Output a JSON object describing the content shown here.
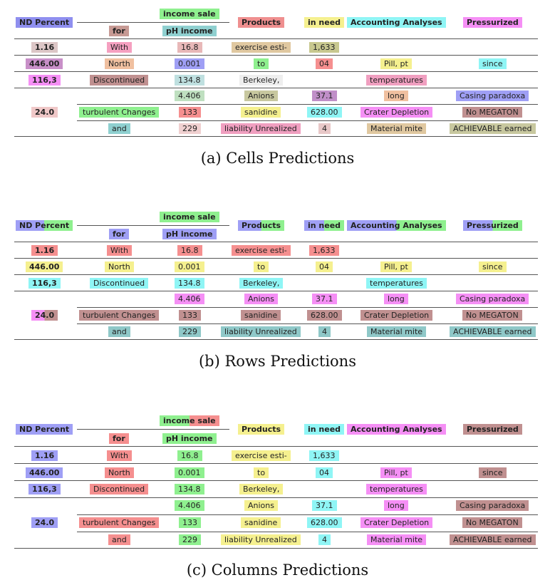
{
  "figures": [
    {
      "id": "cells",
      "caption": "(a)  Cells Predictions",
      "cells": {
        "h_nd_percent": {
          "text": "ND Percent",
          "colors": [
            "#8f8fef"
          ]
        },
        "h_income_sale": {
          "text": "income sale",
          "colors": [
            "#8ff08f"
          ]
        },
        "h_for": {
          "text": "for",
          "colors": [
            "#c79a94"
          ]
        },
        "h_ph_income": {
          "text": "pH income",
          "colors": [
            "#8fd0d0"
          ]
        },
        "h_products": {
          "text": "Products",
          "colors": [
            "#ef8f8f"
          ]
        },
        "h_in_need": {
          "text": "in need",
          "colors": [
            "#f5f08f"
          ]
        },
        "h_accounting": {
          "text": "Accounting Analyses",
          "colors": [
            "#8ff5f5"
          ]
        },
        "h_pressurized": {
          "text": "Pressurized",
          "colors": [
            "#f58ff5"
          ]
        },
        "r1_nd": {
          "text": "1.16",
          "colors": [
            "#dcc6c6"
          ]
        },
        "r1_for": {
          "text": "With",
          "colors": [
            "#f5a0c0"
          ]
        },
        "r1_ph": {
          "text": "16.8",
          "colors": [
            "#e8b8b8"
          ]
        },
        "r1_products": {
          "text": "exercise esti-",
          "colors": [
            "#e0c8a0"
          ]
        },
        "r1_in_need": {
          "text": "1,633",
          "colors": [
            "#c8c88f"
          ]
        },
        "r2_nd": {
          "text": "446.00",
          "colors": [
            "#c88fc8"
          ]
        },
        "r2_for": {
          "text": "North",
          "colors": [
            "#f0c0a0"
          ]
        },
        "r2_ph": {
          "text": "0.001",
          "colors": [
            "#9f9ff5"
          ]
        },
        "r2_products": {
          "text": "to",
          "colors": [
            "#8ff08f"
          ]
        },
        "r2_in_need": {
          "text": "04",
          "colors": [
            "#f58f8f"
          ]
        },
        "r2_accounting": {
          "text": "Pill, pt",
          "colors": [
            "#f5f08f"
          ]
        },
        "r2_pressurized": {
          "text": "since",
          "colors": [
            "#8ff5f5"
          ]
        },
        "r3_nd": {
          "text": "116,3",
          "colors": [
            "#f58ff5"
          ]
        },
        "r3_for": {
          "text": "Discontinued",
          "colors": [
            "#c09090"
          ]
        },
        "r3_ph": {
          "text": "134.8",
          "colors": [
            "#bfe0e0"
          ]
        },
        "r3_products": {
          "text": "Berkeley,",
          "colors": [
            "#eeeeee"
          ]
        },
        "r3_accounting": {
          "text": "temperatures",
          "colors": [
            "#f09fc0"
          ]
        },
        "r4_ph": {
          "text": "4.406",
          "colors": [
            "#bfe0c0"
          ]
        },
        "r4_products": {
          "text": "Anions",
          "colors": [
            "#c8c89f"
          ]
        },
        "r4_in_need": {
          "text": "37.1",
          "colors": [
            "#c08fc8"
          ]
        },
        "r4_accounting": {
          "text": "long",
          "colors": [
            "#f0c0a0"
          ]
        },
        "r4_pressurized": {
          "text": "Casing paradoxa",
          "colors": [
            "#9f9ff5"
          ]
        },
        "r5_nd": {
          "text": "24.0",
          "colors": [
            "#f0c8c8"
          ]
        },
        "r5_for": {
          "text": "turbulent Changes",
          "colors": [
            "#8ff08f"
          ]
        },
        "r5_ph": {
          "text": "133",
          "colors": [
            "#f58f8f"
          ]
        },
        "r5_products": {
          "text": "sanidine",
          "colors": [
            "#f5f08f"
          ]
        },
        "r5_in_need": {
          "text": "628.00",
          "colors": [
            "#8ff5f5"
          ]
        },
        "r5_accounting": {
          "text": "Crater Depletion",
          "colors": [
            "#f58ff5"
          ]
        },
        "r5_pressurized": {
          "text": "No MEGATON",
          "colors": [
            "#c09090"
          ]
        },
        "r6_for": {
          "text": "and",
          "colors": [
            "#8fd0d0"
          ]
        },
        "r6_ph": {
          "text": "229",
          "colors": [
            "#f0d0d0"
          ]
        },
        "r6_products": {
          "text": "liability Unrealized",
          "colors": [
            "#f09fc0"
          ]
        },
        "r6_in_need": {
          "text": "4",
          "colors": [
            "#e8c8c8"
          ]
        },
        "r6_accounting": {
          "text": "Material mite",
          "colors": [
            "#e0c8a0"
          ]
        },
        "r6_pressurized": {
          "text": "ACHIEVABLE earned",
          "colors": [
            "#c8c89f"
          ]
        }
      }
    },
    {
      "id": "rows",
      "caption": "(b)  Rows Predictions",
      "cells": {
        "h_nd_percent": {
          "text": "ND Percent",
          "colors": [
            "#9f9ff5",
            "#8ff08f"
          ]
        },
        "h_income_sale": {
          "text": "income sale",
          "colors": [
            "#8ff08f"
          ]
        },
        "h_for": {
          "text": "for",
          "colors": [
            "#9f9ff5"
          ]
        },
        "h_ph_income": {
          "text": "pH income",
          "colors": [
            "#9f9ff5"
          ]
        },
        "h_products": {
          "text": "Products",
          "colors": [
            "#9f9ff5",
            "#8ff08f"
          ]
        },
        "h_in_need": {
          "text": "in need",
          "colors": [
            "#9f9ff5",
            "#8ff08f"
          ]
        },
        "h_accounting": {
          "text": "Accounting Analyses",
          "colors": [
            "#9f9ff5",
            "#8ff08f"
          ]
        },
        "h_pressurized": {
          "text": "Pressurized",
          "colors": [
            "#9f9ff5",
            "#8ff08f"
          ]
        },
        "r1_nd": {
          "text": "1.16",
          "colors": [
            "#f58f8f"
          ]
        },
        "r1_for": {
          "text": "With",
          "colors": [
            "#f58f8f"
          ]
        },
        "r1_ph": {
          "text": "16.8",
          "colors": [
            "#f58f8f"
          ]
        },
        "r1_products": {
          "text": "exercise esti-",
          "colors": [
            "#f58f8f"
          ]
        },
        "r1_in_need": {
          "text": "1,633",
          "colors": [
            "#f58f8f"
          ]
        },
        "r2_nd": {
          "text": "446.00",
          "colors": [
            "#f5f08f"
          ]
        },
        "r2_for": {
          "text": "North",
          "colors": [
            "#f5f08f"
          ]
        },
        "r2_ph": {
          "text": "0.001",
          "colors": [
            "#f5f08f"
          ]
        },
        "r2_products": {
          "text": "to",
          "colors": [
            "#f5f08f"
          ]
        },
        "r2_in_need": {
          "text": "04",
          "colors": [
            "#f5f08f"
          ]
        },
        "r2_accounting": {
          "text": "Pill, pt",
          "colors": [
            "#f5f08f"
          ]
        },
        "r2_pressurized": {
          "text": "since",
          "colors": [
            "#f5f08f"
          ]
        },
        "r3_nd": {
          "text": "116,3",
          "colors": [
            "#8ff5f5"
          ]
        },
        "r3_for": {
          "text": "Discontinued",
          "colors": [
            "#8ff5f5"
          ]
        },
        "r3_ph": {
          "text": "134.8",
          "colors": [
            "#8ff5f5"
          ]
        },
        "r3_products": {
          "text": "Berkeley,",
          "colors": [
            "#8ff5f5"
          ]
        },
        "r3_accounting": {
          "text": "temperatures",
          "colors": [
            "#8ff5f5"
          ]
        },
        "r4_ph": {
          "text": "4.406",
          "colors": [
            "#f58ff5"
          ]
        },
        "r4_products": {
          "text": "Anions",
          "colors": [
            "#f58ff5"
          ]
        },
        "r4_in_need": {
          "text": "37.1",
          "colors": [
            "#f58ff5"
          ]
        },
        "r4_accounting": {
          "text": "long",
          "colors": [
            "#f58ff5"
          ]
        },
        "r4_pressurized": {
          "text": "Casing paradoxa",
          "colors": [
            "#f58ff5"
          ]
        },
        "r5_nd": {
          "text": "24.0",
          "colors": [
            "#f58ff5",
            "#c09090"
          ]
        },
        "r5_for": {
          "text": "turbulent Changes",
          "colors": [
            "#c09090"
          ]
        },
        "r5_ph": {
          "text": "133",
          "colors": [
            "#c09090"
          ]
        },
        "r5_products": {
          "text": "sanidine",
          "colors": [
            "#c09090"
          ]
        },
        "r5_in_need": {
          "text": "628.00",
          "colors": [
            "#c09090"
          ]
        },
        "r5_accounting": {
          "text": "Crater Depletion",
          "colors": [
            "#c09090"
          ]
        },
        "r5_pressurized": {
          "text": "No MEGATON",
          "colors": [
            "#c09090"
          ]
        },
        "r6_for": {
          "text": "and",
          "colors": [
            "#8fc8c8"
          ]
        },
        "r6_ph": {
          "text": "229",
          "colors": [
            "#8fc8c8"
          ]
        },
        "r6_products": {
          "text": "liability Unrealized",
          "colors": [
            "#8fc8c8"
          ]
        },
        "r6_in_need": {
          "text": "4",
          "colors": [
            "#8fc8c8"
          ]
        },
        "r6_accounting": {
          "text": "Material mite",
          "colors": [
            "#8fc8c8"
          ]
        },
        "r6_pressurized": {
          "text": "ACHIEVABLE earned",
          "colors": [
            "#8fc8c8"
          ]
        }
      }
    },
    {
      "id": "columns",
      "caption": "(c)  Columns Predictions",
      "cells": {
        "h_nd_percent": {
          "text": "ND Percent",
          "colors": [
            "#9f9ff5"
          ]
        },
        "h_income_sale": {
          "text": "income sale",
          "colors": [
            "#8ff08f",
            "#f58f8f"
          ]
        },
        "h_for": {
          "text": "for",
          "colors": [
            "#f58f8f"
          ]
        },
        "h_ph_income": {
          "text": "pH income",
          "colors": [
            "#8ff08f"
          ]
        },
        "h_products": {
          "text": "Products",
          "colors": [
            "#f5f08f"
          ]
        },
        "h_in_need": {
          "text": "in need",
          "colors": [
            "#8ff5f5"
          ]
        },
        "h_accounting": {
          "text": "Accounting Analyses",
          "colors": [
            "#f58ff5"
          ]
        },
        "h_pressurized": {
          "text": "Pressurized",
          "colors": [
            "#c09090"
          ]
        },
        "r1_nd": {
          "text": "1.16",
          "colors": [
            "#9f9ff5"
          ]
        },
        "r1_for": {
          "text": "With",
          "colors": [
            "#f58f8f"
          ]
        },
        "r1_ph": {
          "text": "16.8",
          "colors": [
            "#8ff08f"
          ]
        },
        "r1_products": {
          "text": "exercise esti-",
          "colors": [
            "#f5f08f"
          ]
        },
        "r1_in_need": {
          "text": "1,633",
          "colors": [
            "#8ff5f5"
          ]
        },
        "r2_nd": {
          "text": "446.00",
          "colors": [
            "#9f9ff5"
          ]
        },
        "r2_for": {
          "text": "North",
          "colors": [
            "#f58f8f"
          ]
        },
        "r2_ph": {
          "text": "0.001",
          "colors": [
            "#8ff08f"
          ]
        },
        "r2_products": {
          "text": "to",
          "colors": [
            "#f5f08f"
          ]
        },
        "r2_in_need": {
          "text": "04",
          "colors": [
            "#8ff5f5"
          ]
        },
        "r2_accounting": {
          "text": "Pill, pt",
          "colors": [
            "#f58ff5"
          ]
        },
        "r2_pressurized": {
          "text": "since",
          "colors": [
            "#c09090"
          ]
        },
        "r3_nd": {
          "text": "116,3",
          "colors": [
            "#9f9ff5"
          ]
        },
        "r3_for": {
          "text": "Discontinued",
          "colors": [
            "#f58f8f"
          ]
        },
        "r3_ph": {
          "text": "134.8",
          "colors": [
            "#8ff08f"
          ]
        },
        "r3_products": {
          "text": "Berkeley,",
          "colors": [
            "#f5f08f"
          ]
        },
        "r3_accounting": {
          "text": "temperatures",
          "colors": [
            "#f58ff5"
          ]
        },
        "r4_ph": {
          "text": "4.406",
          "colors": [
            "#8ff08f"
          ]
        },
        "r4_products": {
          "text": "Anions",
          "colors": [
            "#f5f08f"
          ]
        },
        "r4_in_need": {
          "text": "37.1",
          "colors": [
            "#8ff5f5"
          ]
        },
        "r4_accounting": {
          "text": "long",
          "colors": [
            "#f58ff5"
          ]
        },
        "r4_pressurized": {
          "text": "Casing paradoxa",
          "colors": [
            "#c09090"
          ]
        },
        "r5_nd": {
          "text": "24.0",
          "colors": [
            "#9f9ff5"
          ]
        },
        "r5_for": {
          "text": "turbulent Changes",
          "colors": [
            "#f58f8f"
          ]
        },
        "r5_ph": {
          "text": "133",
          "colors": [
            "#8ff08f"
          ]
        },
        "r5_products": {
          "text": "sanidine",
          "colors": [
            "#f5f08f"
          ]
        },
        "r5_in_need": {
          "text": "628.00",
          "colors": [
            "#8ff5f5"
          ]
        },
        "r5_accounting": {
          "text": "Crater Depletion",
          "colors": [
            "#f58ff5"
          ]
        },
        "r5_pressurized": {
          "text": "No MEGATON",
          "colors": [
            "#c09090"
          ]
        },
        "r6_for": {
          "text": "and",
          "colors": [
            "#f58f8f"
          ]
        },
        "r6_ph": {
          "text": "229",
          "colors": [
            "#8ff08f"
          ]
        },
        "r6_products": {
          "text": "liability Unrealized",
          "colors": [
            "#f5f08f"
          ]
        },
        "r6_in_need": {
          "text": "4",
          "colors": [
            "#8ff5f5"
          ]
        },
        "r6_accounting": {
          "text": "Material mite",
          "colors": [
            "#f58ff5"
          ]
        },
        "r6_pressurized": {
          "text": "ACHIEVABLE earned",
          "colors": [
            "#c09090"
          ]
        }
      }
    }
  ]
}
